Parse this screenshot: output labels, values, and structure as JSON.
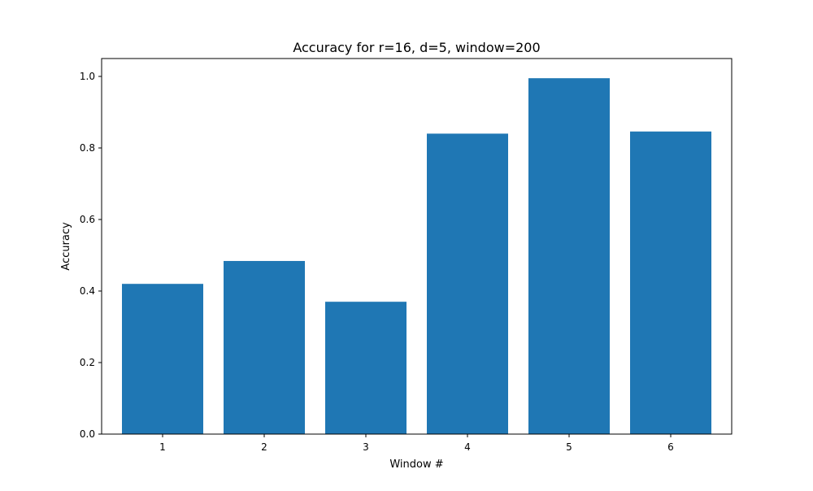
{
  "chart_data": {
    "type": "bar",
    "title": "Accuracy for r=16, d=5, window=200",
    "xlabel": "Window #",
    "ylabel": "Accuracy",
    "categories": [
      "1",
      "2",
      "3",
      "4",
      "5",
      "6"
    ],
    "values": [
      0.42,
      0.484,
      0.37,
      0.84,
      0.995,
      0.846
    ],
    "ylim": [
      0,
      1.05
    ],
    "yticks": [
      0.0,
      0.2,
      0.4,
      0.6,
      0.8,
      1.0
    ],
    "ytick_labels": [
      "0.0",
      "0.2",
      "0.4",
      "0.6",
      "0.8",
      "1.0"
    ],
    "bar_color": "#1f77b4",
    "grid": false
  }
}
